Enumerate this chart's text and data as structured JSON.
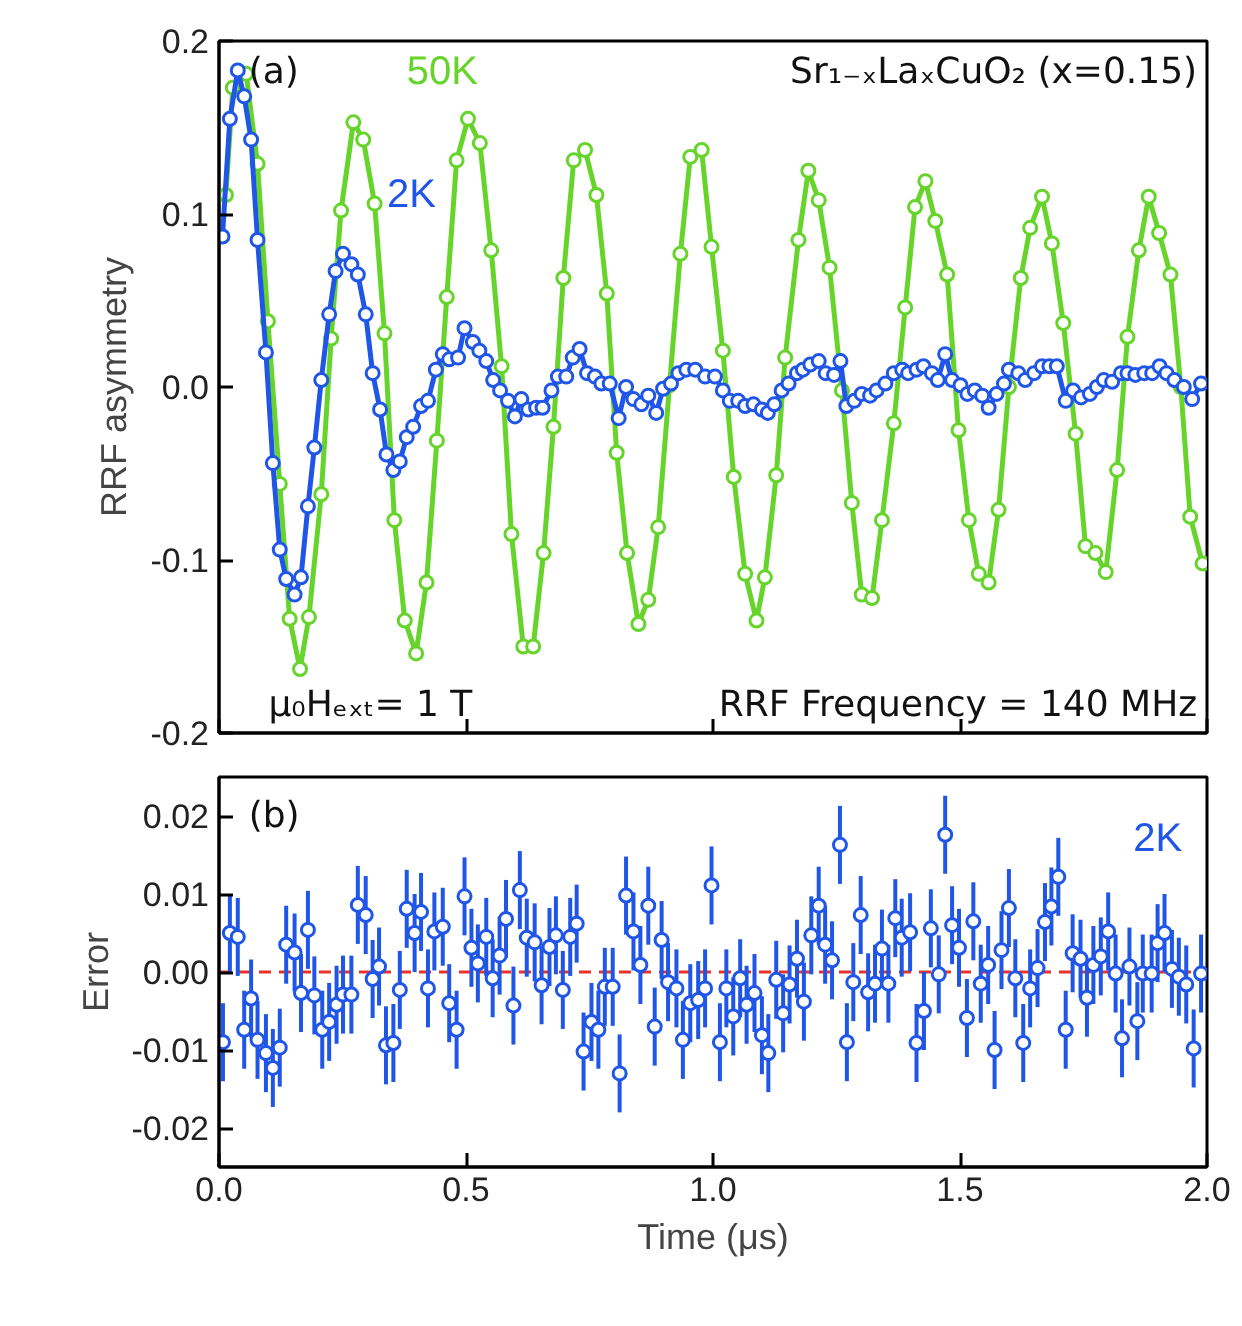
{
  "chart_data": [
    {
      "type": "line",
      "marker": "circle",
      "tick_labels": "y",
      "ylabel": "RRF asymmetry",
      "xlim": [
        0,
        2
      ],
      "xticks": [
        0,
        0.5,
        1,
        1.5,
        2
      ],
      "ylim": [
        -0.2,
        0.2
      ],
      "yticks": [
        {
          "value": -0.2,
          "label": "-0.2"
        },
        {
          "value": -0.1,
          "label": "-0.1"
        },
        {
          "value": 0,
          "label": "0.0"
        },
        {
          "value": 0.1,
          "label": "0.1"
        },
        {
          "value": 0.2,
          "label": "0.2"
        }
      ],
      "annotations": [
        "(a)",
        "Sr₁₋ₓLaₓCuO₂ (x=0.15)",
        "μ₀Hₑₓₜ= 1 T",
        "RRF Frequency = 140 MHz"
      ],
      "series": [
        {
          "name": "50K",
          "color": "#66d42a",
          "x": [
            0.014,
            0.028,
            0.055,
            0.078,
            0.099,
            0.123,
            0.143,
            0.164,
            0.182,
            0.207,
            0.227,
            0.247,
            0.272,
            0.292,
            0.315,
            0.335,
            0.355,
            0.376,
            0.399,
            0.42,
            0.441,
            0.461,
            0.481,
            0.504,
            0.528,
            0.551,
            0.572,
            0.592,
            0.616,
            0.636,
            0.657,
            0.677,
            0.697,
            0.718,
            0.741,
            0.764,
            0.785,
            0.805,
            0.826,
            0.849,
            0.869,
            0.889,
            0.912,
            0.934,
            0.954,
            0.977,
            0.997,
            1.02,
            1.042,
            1.065,
            1.088,
            1.105,
            1.128,
            1.146,
            1.173,
            1.193,
            1.214,
            1.236,
            1.261,
            1.281,
            1.301,
            1.322,
            1.342,
            1.366,
            1.389,
            1.409,
            1.43,
            1.45,
            1.474,
            1.497,
            1.518,
            1.538,
            1.558,
            1.578,
            1.599,
            1.623,
            1.642,
            1.666,
            1.686,
            1.709,
            1.734,
            1.754,
            1.774,
            1.795,
            1.818,
            1.839,
            1.862,
            1.882,
            1.903,
            1.926,
            1.947,
            1.966,
            1.991
          ],
          "values": [
            0.111,
            0.173,
            0.181,
            0.129,
            0.038,
            -0.056,
            -0.134,
            -0.163,
            -0.133,
            -0.062,
            0.028,
            0.102,
            0.153,
            0.143,
            0.106,
            0.031,
            -0.077,
            -0.135,
            -0.154,
            -0.113,
            -0.031,
            0.052,
            0.131,
            0.155,
            0.141,
            0.079,
            0.012,
            -0.085,
            -0.15,
            -0.15,
            -0.096,
            -0.023,
            0.063,
            0.131,
            0.137,
            0.111,
            0.054,
            -0.038,
            -0.096,
            -0.137,
            -0.123,
            -0.081,
            0.001,
            0.077,
            0.133,
            0.137,
            0.081,
            0.021,
            -0.052,
            -0.108,
            -0.135,
            -0.11,
            -0.051,
            0.017,
            0.085,
            0.125,
            0.108,
            0.069,
            -0.002,
            -0.067,
            -0.12,
            -0.122,
            -0.077,
            -0.021,
            0.046,
            0.104,
            0.119,
            0.096,
            0.065,
            -0.025,
            -0.077,
            -0.108,
            -0.113,
            -0.071,
            0.0,
            0.063,
            0.092,
            0.11,
            0.083,
            0.037,
            -0.027,
            -0.092,
            -0.096,
            -0.107,
            -0.048,
            0.029,
            0.079,
            0.11,
            0.089,
            0.065,
            0.0,
            -0.075,
            -0.102
          ]
        },
        {
          "name": "2K",
          "color": "#1f56e8",
          "x": [
            0.007,
            0.022,
            0.038,
            0.051,
            0.065,
            0.078,
            0.095,
            0.109,
            0.123,
            0.136,
            0.153,
            0.166,
            0.18,
            0.193,
            0.207,
            0.223,
            0.236,
            0.251,
            0.268,
            0.281,
            0.297,
            0.311,
            0.326,
            0.339,
            0.353,
            0.366,
            0.38,
            0.393,
            0.409,
            0.423,
            0.439,
            0.453,
            0.466,
            0.484,
            0.497,
            0.514,
            0.527,
            0.541,
            0.555,
            0.569,
            0.585,
            0.599,
            0.612,
            0.626,
            0.642,
            0.655,
            0.673,
            0.686,
            0.703,
            0.716,
            0.73,
            0.745,
            0.761,
            0.774,
            0.791,
            0.809,
            0.824,
            0.839,
            0.855,
            0.869,
            0.885,
            0.899,
            0.915,
            0.93,
            0.946,
            0.964,
            0.984,
            1.004,
            1.02,
            1.034,
            1.051,
            1.065,
            1.082,
            1.099,
            1.111,
            1.124,
            1.139,
            1.153,
            1.17,
            1.182,
            1.197,
            1.214,
            1.228,
            1.245,
            1.258,
            1.27,
            1.286,
            1.301,
            1.318,
            1.331,
            1.349,
            1.366,
            1.383,
            1.395,
            1.412,
            1.426,
            1.443,
            1.455,
            1.47,
            1.484,
            1.501,
            1.515,
            1.53,
            1.545,
            1.558,
            1.574,
            1.589,
            1.599,
            1.618,
            1.632,
            1.65,
            1.666,
            1.681,
            1.696,
            1.714,
            1.729,
            1.745,
            1.763,
            1.777,
            1.791,
            1.808,
            1.826,
            1.839,
            1.855,
            1.873,
            1.889,
            1.904,
            1.918,
            1.934,
            1.953,
            1.97,
            1.988
          ],
          "values": [
            0.087,
            0.155,
            0.183,
            0.168,
            0.143,
            0.085,
            0.02,
            -0.044,
            -0.094,
            -0.111,
            -0.12,
            -0.11,
            -0.069,
            -0.035,
            0.004,
            0.042,
            0.067,
            0.077,
            0.071,
            0.065,
            0.042,
            0.008,
            -0.013,
            -0.039,
            -0.048,
            -0.043,
            -0.029,
            -0.023,
            -0.011,
            -0.008,
            0.01,
            0.019,
            0.016,
            0.017,
            0.034,
            0.026,
            0.021,
            0.015,
            0.004,
            -0.002,
            -0.008,
            -0.017,
            -0.007,
            -0.013,
            -0.012,
            -0.012,
            -0.002,
            0.006,
            0.006,
            0.017,
            0.022,
            0.008,
            0.006,
            0.002,
            0.002,
            -0.018,
            0.0,
            -0.007,
            -0.01,
            -0.005,
            -0.015,
            -0.001,
            0.002,
            0.008,
            0.01,
            0.01,
            0.006,
            0.006,
            -0.002,
            -0.008,
            -0.008,
            -0.011,
            -0.01,
            -0.013,
            -0.015,
            -0.01,
            -0.002,
            0.002,
            0.008,
            0.01,
            0.013,
            0.015,
            0.008,
            0.007,
            0.015,
            -0.011,
            -0.008,
            -0.004,
            -0.005,
            -0.002,
            0.002,
            0.008,
            0.01,
            0.008,
            0.01,
            0.012,
            0.008,
            0.004,
            0.019,
            0.004,
            0.001,
            -0.004,
            -0.002,
            -0.005,
            -0.012,
            -0.004,
            0.002,
            0.01,
            0.008,
            0.004,
            0.008,
            0.012,
            0.012,
            0.012,
            -0.008,
            -0.002,
            -0.006,
            -0.004,
            0.0,
            0.004,
            0.003,
            0.008,
            0.008,
            0.007,
            0.008,
            0.008,
            0.012,
            0.008,
            0.004,
            0.0,
            -0.007,
            0.002
          ]
        }
      ]
    },
    {
      "type": "scatter",
      "marker": "circle",
      "xlabel": "Time (μs)",
      "ylabel": "Error",
      "xlim": [
        0,
        2
      ],
      "xticks": [
        {
          "value": 0,
          "label": "0.0"
        },
        {
          "value": 0.5,
          "label": "0.5"
        },
        {
          "value": 1,
          "label": "1.0"
        },
        {
          "value": 1.5,
          "label": "1.5"
        },
        {
          "value": 2,
          "label": "2.0"
        }
      ],
      "ylim": [
        -0.025,
        0.025
      ],
      "yticks": [
        {
          "value": -0.02,
          "label": "-0.02"
        },
        {
          "value": -0.01,
          "label": "-0.01"
        },
        {
          "value": 0,
          "label": "0.00"
        },
        {
          "value": 0.01,
          "label": "0.01"
        },
        {
          "value": 0.02,
          "label": "0.02"
        }
      ],
      "annotations": [
        "(b)"
      ],
      "ref_lines": [
        {
          "axis": "y",
          "value": 0,
          "label": null,
          "color": "#e8322a",
          "line_style": "dashed"
        }
      ],
      "series": [
        {
          "name": "2K",
          "color": "#1f56e8",
          "x": [
            0.008,
            0.022,
            0.038,
            0.051,
            0.065,
            0.078,
            0.095,
            0.109,
            0.123,
            0.136,
            0.153,
            0.166,
            0.18,
            0.193,
            0.209,
            0.223,
            0.238,
            0.251,
            0.268,
            0.281,
            0.297,
            0.311,
            0.324,
            0.338,
            0.353,
            0.366,
            0.38,
            0.396,
            0.409,
            0.423,
            0.436,
            0.453,
            0.466,
            0.481,
            0.497,
            0.511,
            0.524,
            0.541,
            0.554,
            0.568,
            0.581,
            0.596,
            0.609,
            0.623,
            0.639,
            0.653,
            0.669,
            0.682,
            0.696,
            0.711,
            0.724,
            0.738,
            0.754,
            0.768,
            0.781,
            0.797,
            0.811,
            0.824,
            0.839,
            0.853,
            0.869,
            0.882,
            0.896,
            0.909,
            0.926,
            0.939,
            0.954,
            0.97,
            0.984,
            0.997,
            1.014,
            1.027,
            1.041,
            1.055,
            1.068,
            1.084,
            1.099,
            1.112,
            1.128,
            1.142,
            1.155,
            1.17,
            1.184,
            1.199,
            1.214,
            1.227,
            1.241,
            1.257,
            1.271,
            1.284,
            1.299,
            1.314,
            1.328,
            1.342,
            1.355,
            1.369,
            1.382,
            1.399,
            1.412,
            1.427,
            1.441,
            1.457,
            1.47,
            1.484,
            1.498,
            1.514,
            1.527,
            1.542,
            1.557,
            1.57,
            1.584,
            1.599,
            1.612,
            1.628,
            1.642,
            1.657,
            1.672,
            1.685,
            1.699,
            1.714,
            1.728,
            1.744,
            1.757,
            1.77,
            1.785,
            1.8,
            1.815,
            1.828,
            1.843,
            1.859,
            1.87,
            1.888,
            1.9,
            1.914,
            1.929,
            1.943,
            1.958,
            1.973,
            1.988
          ],
          "values": [
            -0.009,
            0.005,
            0.0045,
            -0.0074,
            -0.0034,
            -0.0087,
            -0.0104,
            -0.0123,
            -0.0097,
            0.0035,
            0.0025,
            -0.0027,
            0.0054,
            -0.003,
            -0.0074,
            -0.0064,
            -0.0042,
            -0.0029,
            -0.0029,
            0.0086,
            0.0073,
            -0.0009,
            0.0007,
            -0.0094,
            -0.0091,
            -0.0023,
            0.0081,
            0.005,
            0.0077,
            -0.0021,
            0.0052,
            0.0058,
            -0.004,
            -0.0074,
            0.0097,
            0.0031,
            0.0011,
            0.0045,
            -0.0008,
            0.0021,
            0.0068,
            -0.0043,
            0.0105,
            0.0044,
            0.0038,
            -0.0017,
            0.0032,
            0.0047,
            -0.0023,
            0.0045,
            0.0062,
            -0.0102,
            -0.0064,
            -0.0074,
            -0.0019,
            -0.0019,
            -0.013,
            0.0098,
            0.0052,
            0.0009,
            0.0085,
            -0.007,
            0.0041,
            -0.0013,
            -0.0021,
            -0.0087,
            -0.004,
            -0.0036,
            -0.0021,
            0.0111,
            -0.009,
            -0.0021,
            -0.0057,
            -0.0008,
            -0.0042,
            -0.0027,
            -0.0081,
            -0.0104,
            -0.001,
            -0.0053,
            -0.0016,
            0.0017,
            -0.0038,
            0.0047,
            0.0085,
            0.0035,
            0.0015,
            0.0163,
            -0.009,
            -0.0013,
            0.0073,
            -0.0026,
            -0.0015,
            0.003,
            -0.0015,
            0.0069,
            0.0044,
            0.0051,
            -0.0091,
            -0.005,
            0.0056,
            -0.0003,
            0.0176,
            0.006,
            0.0031,
            -0.0059,
            0.0065,
            -0.0015,
            0.0009,
            -0.01,
            0.0028,
            0.0082,
            -0.0008,
            -0.0091,
            -0.0021,
            0.0005,
            0.0064,
            0.0084,
            0.0122,
            -0.0074,
            0.0024,
            0.0017,
            -0.0033,
            0.0009,
            0.002,
            0.0052,
            -0.0002,
            -0.0085,
            0.0007,
            -0.0063,
            -0.0002,
            -0.0002,
            0.0037,
            0.005,
            0.0004,
            -0.0006,
            -0.0016,
            -0.0098,
            -0.0002
          ],
          "errors": [
            0.005,
            0.005,
            0.005,
            0.005,
            0.005,
            0.005,
            0.005,
            0.005,
            0.005,
            0.005,
            0.005,
            0.005,
            0.005,
            0.005,
            0.005,
            0.005,
            0.005,
            0.005,
            0.005,
            0.005,
            0.005,
            0.005,
            0.005,
            0.005,
            0.005,
            0.005,
            0.005,
            0.005,
            0.005,
            0.005,
            0.005,
            0.005,
            0.005,
            0.005,
            0.005,
            0.005,
            0.005,
            0.005,
            0.005,
            0.005,
            0.005,
            0.005,
            0.005,
            0.005,
            0.005,
            0.005,
            0.005,
            0.005,
            0.005,
            0.005,
            0.005,
            0.005,
            0.005,
            0.005,
            0.005,
            0.005,
            0.005,
            0.005,
            0.005,
            0.005,
            0.005,
            0.005,
            0.005,
            0.005,
            0.005,
            0.005,
            0.005,
            0.005,
            0.005,
            0.005,
            0.005,
            0.005,
            0.005,
            0.005,
            0.005,
            0.005,
            0.005,
            0.005,
            0.005,
            0.005,
            0.005,
            0.005,
            0.005,
            0.005,
            0.005,
            0.005,
            0.005,
            0.005,
            0.005,
            0.005,
            0.005,
            0.005,
            0.005,
            0.005,
            0.005,
            0.005,
            0.005,
            0.005,
            0.005,
            0.005,
            0.005,
            0.005,
            0.005,
            0.005,
            0.005,
            0.005,
            0.005,
            0.005,
            0.005,
            0.005,
            0.005,
            0.005,
            0.005,
            0.005,
            0.005,
            0.005,
            0.005,
            0.005,
            0.005,
            0.005,
            0.005,
            0.005,
            0.005,
            0.005,
            0.005,
            0.005,
            0.005,
            0.005,
            0.005,
            0.005,
            0.005,
            0.005,
            0.005,
            0.005,
            0.005,
            0.005,
            0.005,
            0.005,
            0.005
          ]
        }
      ]
    }
  ]
}
